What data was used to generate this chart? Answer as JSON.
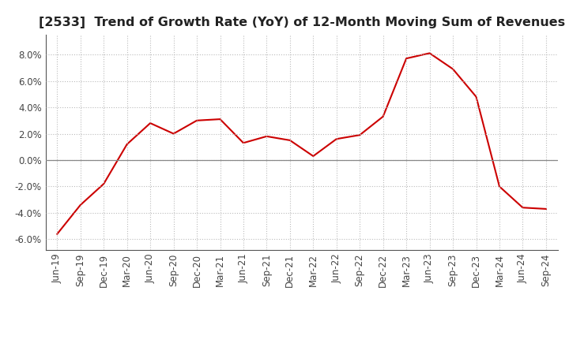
{
  "title": "[2533]  Trend of Growth Rate (YoY) of 12-Month Moving Sum of Revenues",
  "line_color": "#cc0000",
  "line_width": 1.5,
  "background_color": "#ffffff",
  "plot_bg_color": "#ffffff",
  "ylim": [
    -0.068,
    0.095
  ],
  "yticks": [
    -0.06,
    -0.04,
    -0.02,
    0.0,
    0.02,
    0.04,
    0.06,
    0.08
  ],
  "x_labels": [
    "Jun-19",
    "Sep-19",
    "Dec-19",
    "Mar-20",
    "Jun-20",
    "Sep-20",
    "Dec-20",
    "Mar-21",
    "Jun-21",
    "Sep-21",
    "Dec-21",
    "Mar-22",
    "Jun-22",
    "Sep-22",
    "Dec-22",
    "Mar-23",
    "Jun-23",
    "Sep-23",
    "Dec-23",
    "Mar-24",
    "Jun-24",
    "Sep-24"
  ],
  "y_values": [
    -0.056,
    -0.034,
    -0.018,
    0.012,
    0.028,
    0.02,
    0.03,
    0.031,
    0.013,
    0.018,
    0.015,
    0.003,
    0.016,
    0.019,
    0.033,
    0.077,
    0.081,
    0.069,
    0.048,
    -0.02,
    -0.036,
    -0.037
  ],
  "title_fontsize": 11.5,
  "tick_fontsize": 8.5,
  "grid_color": "#bbbbbb",
  "zero_line_color": "#888888"
}
